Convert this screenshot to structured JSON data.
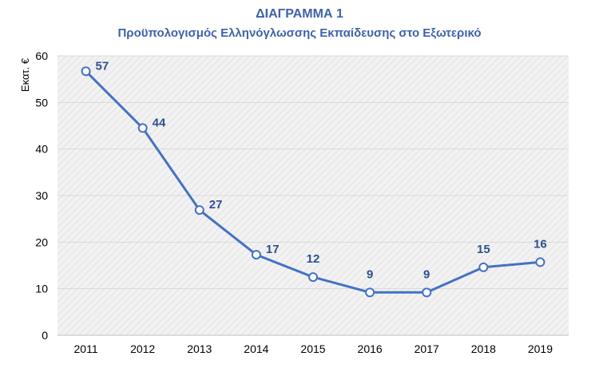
{
  "chart_data": {
    "type": "line",
    "title": "ΔΙΑΓΡΑΜΜΑ 1",
    "subtitle": "Προϋπολογισμός Ελληνόγλωσσης Εκπαίδευσης στο Εξωτερικό",
    "ylabel": "Εκατ. €",
    "xlabel": "",
    "categories": [
      "2011",
      "2012",
      "2013",
      "2014",
      "2015",
      "2016",
      "2017",
      "2018",
      "2019"
    ],
    "series": [
      {
        "values": [
          57,
          44,
          27,
          17,
          12,
          9,
          9,
          15,
          16
        ],
        "data_labels": [
          "57",
          "44",
          "27",
          "17",
          "12",
          "9",
          "9",
          "15",
          "16"
        ]
      }
    ],
    "plotted_values": [
      56.7,
      44.5,
      26.9,
      17.3,
      12.5,
      9.2,
      9.2,
      14.6,
      15.7
    ],
    "ylim": [
      0,
      60
    ],
    "yticks": [
      "0",
      "10",
      "20",
      "30",
      "40",
      "50",
      "60"
    ],
    "grid": true,
    "legend": "none",
    "colors": {
      "line": "#4472c4",
      "label": "#2f4f8f",
      "title": "#3f62a8",
      "plot_bg": "#efefef"
    }
  }
}
